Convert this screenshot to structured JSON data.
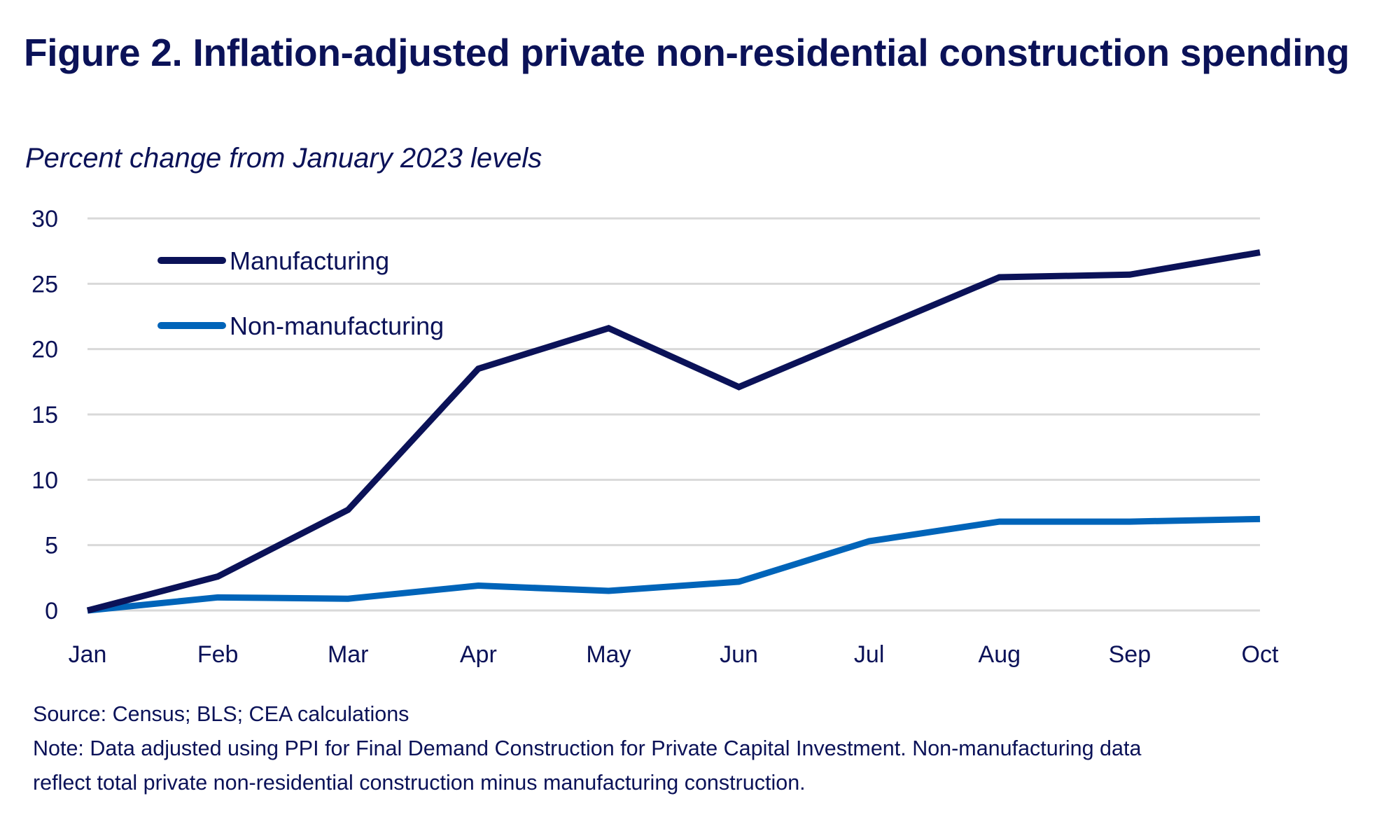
{
  "title": "Figure 2. Inflation-adjusted private non-residential construction spending",
  "subtitle": "Percent change from January 2023 levels",
  "footer": {
    "source": "Source: Census; BLS; CEA calculations",
    "note_line1": "Note: Data adjusted using PPI for Final Demand Construction for Private Capital Investment. Non-manufacturing data",
    "note_line2": "reflect total private non-residential construction minus manufacturing construction."
  },
  "chart_data": {
    "type": "line",
    "title": "Figure 2. Inflation-adjusted private non-residential construction spending",
    "subtitle": "Percent change from January 2023 levels",
    "xlabel": "",
    "ylabel": "",
    "categories": [
      "Jan",
      "Feb",
      "Mar",
      "Apr",
      "May",
      "Jun",
      "Jul",
      "Aug",
      "Sep",
      "Oct"
    ],
    "yticks": [
      0,
      5,
      10,
      15,
      20,
      25,
      30
    ],
    "ylim": [
      0,
      30
    ],
    "grid": "horizontal",
    "legend_position": "top-left",
    "series": [
      {
        "name": "Manufacturing",
        "color": "#0b1258",
        "values": [
          0,
          2.6,
          7.7,
          18.5,
          21.6,
          17.1,
          21.3,
          25.5,
          25.7,
          27.4
        ]
      },
      {
        "name": "Non-manufacturing",
        "color": "#0064b9",
        "values": [
          0,
          1.0,
          0.9,
          1.9,
          1.5,
          2.2,
          5.3,
          6.8,
          6.8,
          7.0
        ]
      }
    ],
    "source": "Source: Census; BLS; CEA calculations"
  }
}
